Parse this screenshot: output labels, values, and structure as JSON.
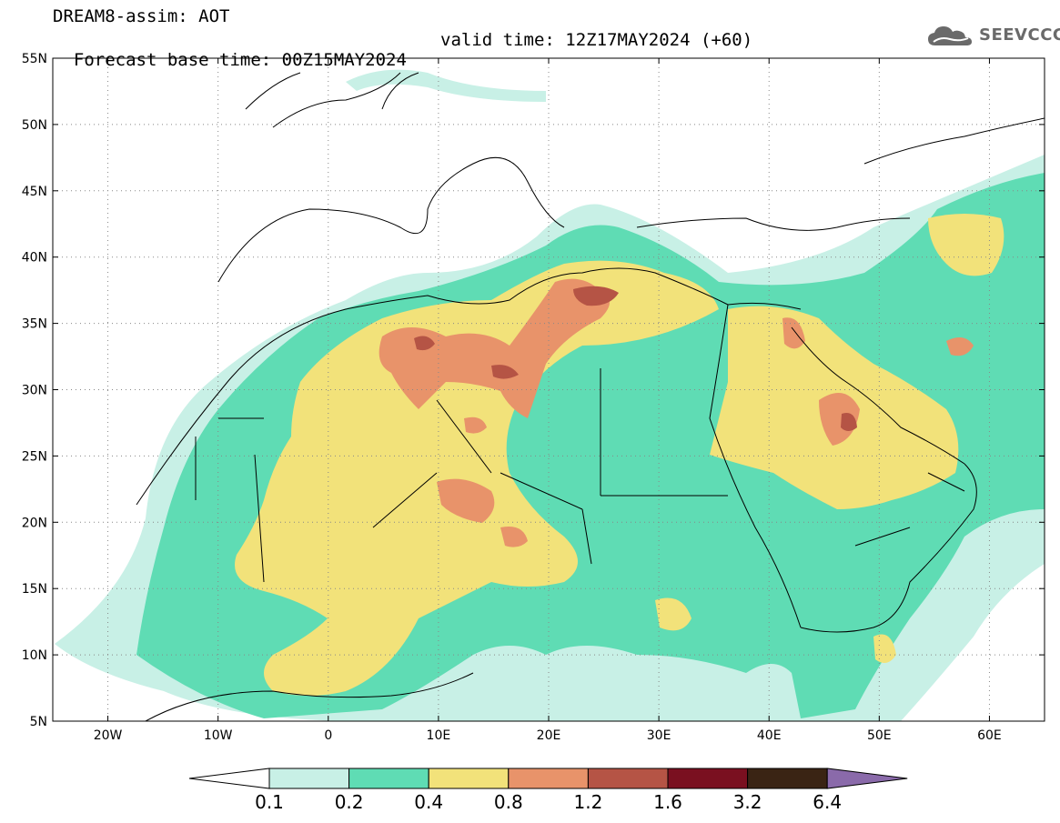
{
  "header": {
    "line1": "DREAM8-assim: AOT",
    "line2_left": "Forecast base time: 00Z15MAY2024",
    "line2_right": "valid time: 12Z17MAY2024 (+60)",
    "logo": "SEEVCCC"
  },
  "map": {
    "variable": "AOT",
    "lon_range": [
      -25,
      65
    ],
    "lat_range": [
      5,
      55
    ],
    "lat_labels": [
      "55N",
      "50N",
      "45N",
      "40N",
      "35N",
      "30N",
      "25N",
      "20N",
      "15N",
      "10N",
      "5N"
    ],
    "lon_labels": [
      "20W",
      "10W",
      "0",
      "10E",
      "20E",
      "30E",
      "40E",
      "50E",
      "60E"
    ],
    "grid": true,
    "grid_style": "dotted"
  },
  "colorbar": {
    "levels": [
      "0.1",
      "0.2",
      "0.4",
      "0.8",
      "1.2",
      "1.6",
      "3.2",
      "6.4"
    ],
    "colors": [
      "#c8f0e6",
      "#5fdcb4",
      "#f2e27a",
      "#e8936a",
      "#b55445",
      "#7a1020",
      "#3a2414",
      "#8a6aaa"
    ],
    "low_color": "#ffffff"
  }
}
